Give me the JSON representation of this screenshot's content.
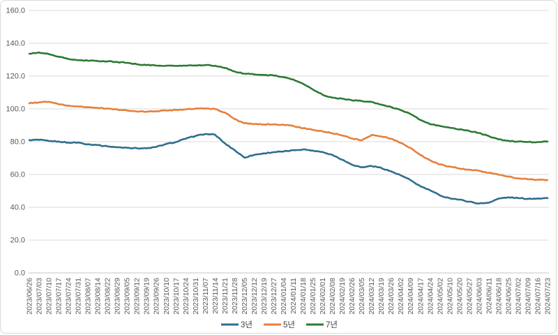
{
  "chart_data": {
    "type": "line",
    "title": "",
    "xlabel": "",
    "ylabel": "",
    "ylim": [
      0,
      160
    ],
    "ytick_step": 20,
    "ytick_labels": [
      "0.0",
      "20.0",
      "40.0",
      "60.0",
      "80.0",
      "100.0",
      "120.0",
      "140.0",
      "160.0"
    ],
    "grid": "horizontal",
    "gridline_color": "#d9d9d9",
    "axis_label_color": "#595959",
    "legend_position": "bottom-center",
    "categories": [
      "2023/06/26",
      "2023/07/03",
      "2023/07/10",
      "2023/07/17",
      "2023/07/24",
      "2023/07/31",
      "2023/08/07",
      "2023/08/14",
      "2023/08/22",
      "2023/08/29",
      "2023/09/05",
      "2023/09/12",
      "2023/09/19",
      "2023/09/26",
      "2023/10/10",
      "2023/10/17",
      "2023/10/24",
      "2023/10/31",
      "2023/11/07",
      "2023/11/14",
      "2023/11/21",
      "2023/11/28",
      "2023/12/05",
      "2023/12/12",
      "2023/12/19",
      "2023/12/27",
      "2024/01/04",
      "2024/01/11",
      "2024/01/18",
      "2024/01/25",
      "2024/02/01",
      "2024/02/08",
      "2024/02/19",
      "2024/02/26",
      "2024/03/05",
      "2024/03/12",
      "2024/03/19",
      "2024/03/26",
      "2024/04/02",
      "2024/04/09",
      "2024/04/17",
      "2024/04/24",
      "2024/05/02",
      "2024/05/10",
      "2024/05/20",
      "2024/05/27",
      "2024/06/03",
      "2024/06/11",
      "2024/06/18",
      "2024/06/25",
      "2024/07/02",
      "2024/07/09",
      "2024/07/16",
      "2024/07/23"
    ],
    "series": [
      {
        "name": "3년",
        "color": "#2e6e8e",
        "values": [
          81.0,
          81.1,
          80.4,
          80.1,
          79.4,
          79.5,
          78.4,
          77.9,
          77.1,
          76.6,
          76.3,
          76.0,
          75.9,
          76.8,
          78.6,
          79.8,
          81.8,
          83.5,
          84.7,
          84.2,
          79.0,
          74.8,
          70.3,
          72.0,
          72.9,
          73.6,
          74.0,
          74.8,
          75.3,
          74.6,
          73.7,
          71.9,
          69.0,
          66.0,
          64.4,
          65.2,
          64.0,
          61.9,
          59.4,
          56.5,
          52.8,
          50.3,
          47.2,
          45.5,
          44.7,
          43.4,
          42.3,
          42.8,
          45.3,
          46.1,
          45.6,
          45.2,
          45.4,
          45.6
        ]
      },
      {
        "name": "5년",
        "color": "#e5803c",
        "values": [
          103.4,
          104.0,
          104.3,
          102.8,
          102.0,
          101.5,
          101.0,
          100.6,
          100.2,
          99.6,
          99.0,
          98.4,
          98.3,
          98.6,
          99.0,
          99.4,
          99.8,
          100.1,
          100.3,
          99.9,
          97.8,
          93.8,
          91.2,
          90.7,
          90.5,
          90.6,
          90.3,
          89.6,
          88.2,
          87.2,
          86.3,
          85.1,
          83.8,
          82.0,
          80.8,
          84.1,
          83.2,
          81.8,
          79.2,
          76.2,
          71.8,
          68.6,
          66.1,
          64.8,
          63.6,
          62.9,
          62.2,
          61.0,
          59.8,
          58.7,
          57.6,
          57.1,
          56.8,
          56.7
        ]
      },
      {
        "name": "7년",
        "color": "#2b7a33",
        "values": [
          133.6,
          134.4,
          133.4,
          131.8,
          130.4,
          129.7,
          129.4,
          129.2,
          129.0,
          128.6,
          128.1,
          127.2,
          126.7,
          126.4,
          126.3,
          126.2,
          126.3,
          126.5,
          126.7,
          126.3,
          125.0,
          122.8,
          121.5,
          121.0,
          120.7,
          120.3,
          119.3,
          117.9,
          115.3,
          111.8,
          108.6,
          106.8,
          106.2,
          105.2,
          104.8,
          104.3,
          102.6,
          101.2,
          99.2,
          96.8,
          93.2,
          90.6,
          89.6,
          88.5,
          87.5,
          86.5,
          85.3,
          83.4,
          81.4,
          80.5,
          80.1,
          79.8,
          79.8,
          80.1
        ]
      }
    ]
  }
}
